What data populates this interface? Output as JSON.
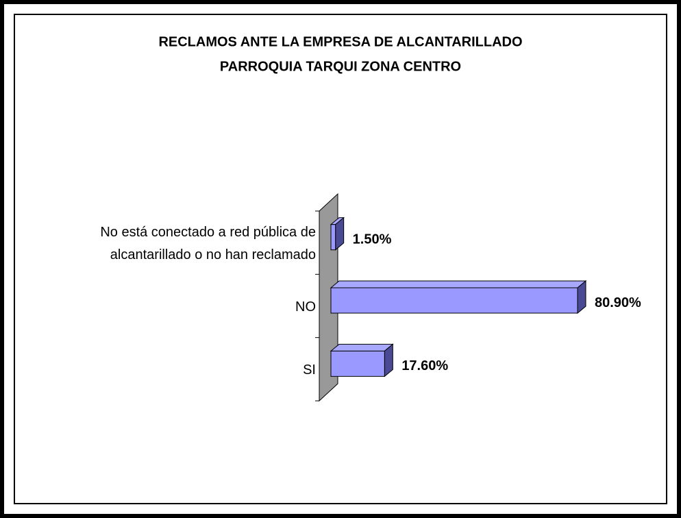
{
  "chart_data": {
    "type": "bar3d_horizontal",
    "title": [
      "RECLAMOS ANTE LA EMPRESA DE ALCANTARILLADO",
      "PARROQUIA TARQUI ZONA CENTRO"
    ],
    "categories": [
      "No está conectado a red pública de alcantarillado o no han reclamado",
      "NO",
      "SI"
    ],
    "values": [
      1.5,
      80.9,
      17.6
    ],
    "value_labels": [
      "1.50%",
      "80.90%",
      "17.60%"
    ],
    "color": "#9999ff",
    "xlim": [
      0,
      100
    ]
  }
}
